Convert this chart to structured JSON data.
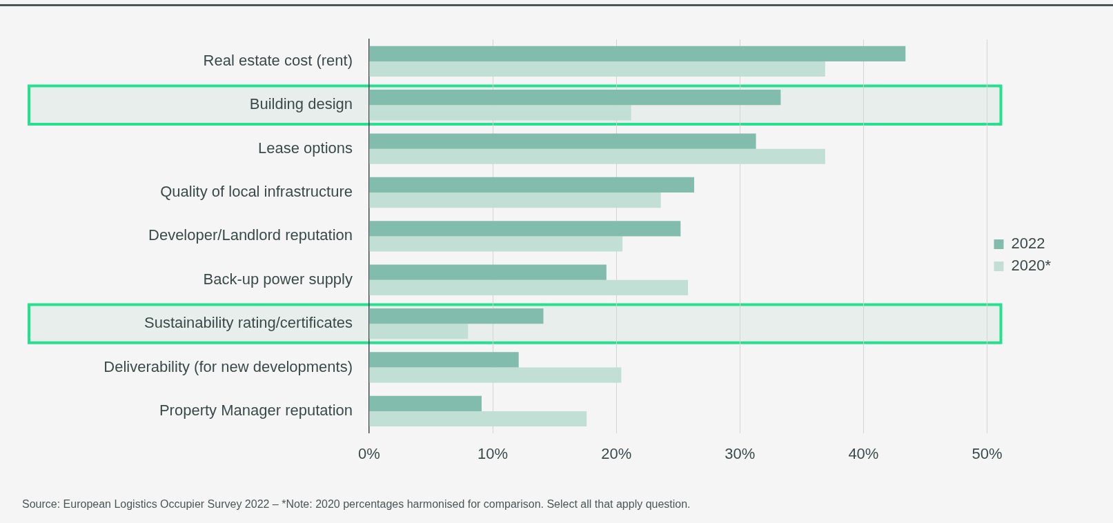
{
  "chart_data": {
    "type": "bar",
    "orientation": "horizontal",
    "categories": [
      "Real estate cost (rent)",
      "Building design",
      "Lease options",
      "Quality of local infrastructure",
      "Developer/Landlord reputation",
      "Back-up power supply",
      "Sustainability rating/certificates",
      "Deliverability (for new developments)",
      "Property Manager reputation"
    ],
    "series": [
      {
        "name": "2022",
        "color": "#82bcad",
        "values": [
          43.4,
          33.3,
          31.3,
          26.3,
          25.2,
          19.2,
          14.1,
          12.1,
          9.1
        ]
      },
      {
        "name": "2020*",
        "color": "#c2dfd6",
        "values": [
          36.9,
          21.2,
          36.9,
          23.6,
          20.5,
          25.8,
          8.0,
          20.4,
          17.6
        ]
      }
    ],
    "xlim": [
      0,
      50
    ],
    "xticks": [
      {
        "value": 0,
        "label": "0%"
      },
      {
        "value": 10,
        "label": "10%"
      },
      {
        "value": 20,
        "label": "20%"
      },
      {
        "value": 30,
        "label": "30%"
      },
      {
        "value": 40,
        "label": "40%"
      },
      {
        "value": 50,
        "label": "50%"
      }
    ],
    "grid": "x",
    "legend": "right",
    "bands": [
      {
        "axis": "y",
        "from": "Building design",
        "to": "Building design",
        "color": "#e8eeeb"
      },
      {
        "axis": "y",
        "from": "Sustainability rating/certificates",
        "to": "Sustainability rating/certificates",
        "color": "#e8eeeb"
      }
    ],
    "annotations": [
      "Source: European Logistics Occupier Survey 2022 – *Note: 2020 percentages harmonised for comparison. Select all that apply question."
    ]
  }
}
